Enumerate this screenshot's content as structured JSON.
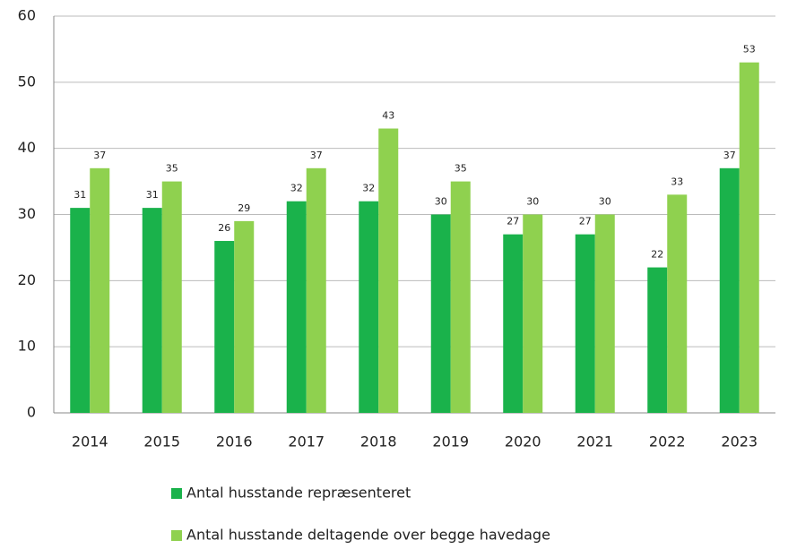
{
  "chart_data": {
    "type": "bar",
    "categories": [
      "2014",
      "2015",
      "2016",
      "2017",
      "2018",
      "2019",
      "2020",
      "2021",
      "2022",
      "2023"
    ],
    "series": [
      {
        "name": "Antal husstande repræsenteret",
        "color": "#1ab24b",
        "values": [
          31,
          31,
          26,
          32,
          32,
          30,
          27,
          27,
          22,
          37
        ]
      },
      {
        "name": "Antal husstande deltagende over begge havedage",
        "color": "#8fd14f",
        "values": [
          37,
          35,
          29,
          37,
          43,
          35,
          30,
          30,
          33,
          53
        ]
      }
    ],
    "ylim": [
      0,
      60
    ],
    "yticks": [
      0,
      10,
      20,
      30,
      40,
      50,
      60
    ],
    "grid": true,
    "legend": "bottom"
  }
}
